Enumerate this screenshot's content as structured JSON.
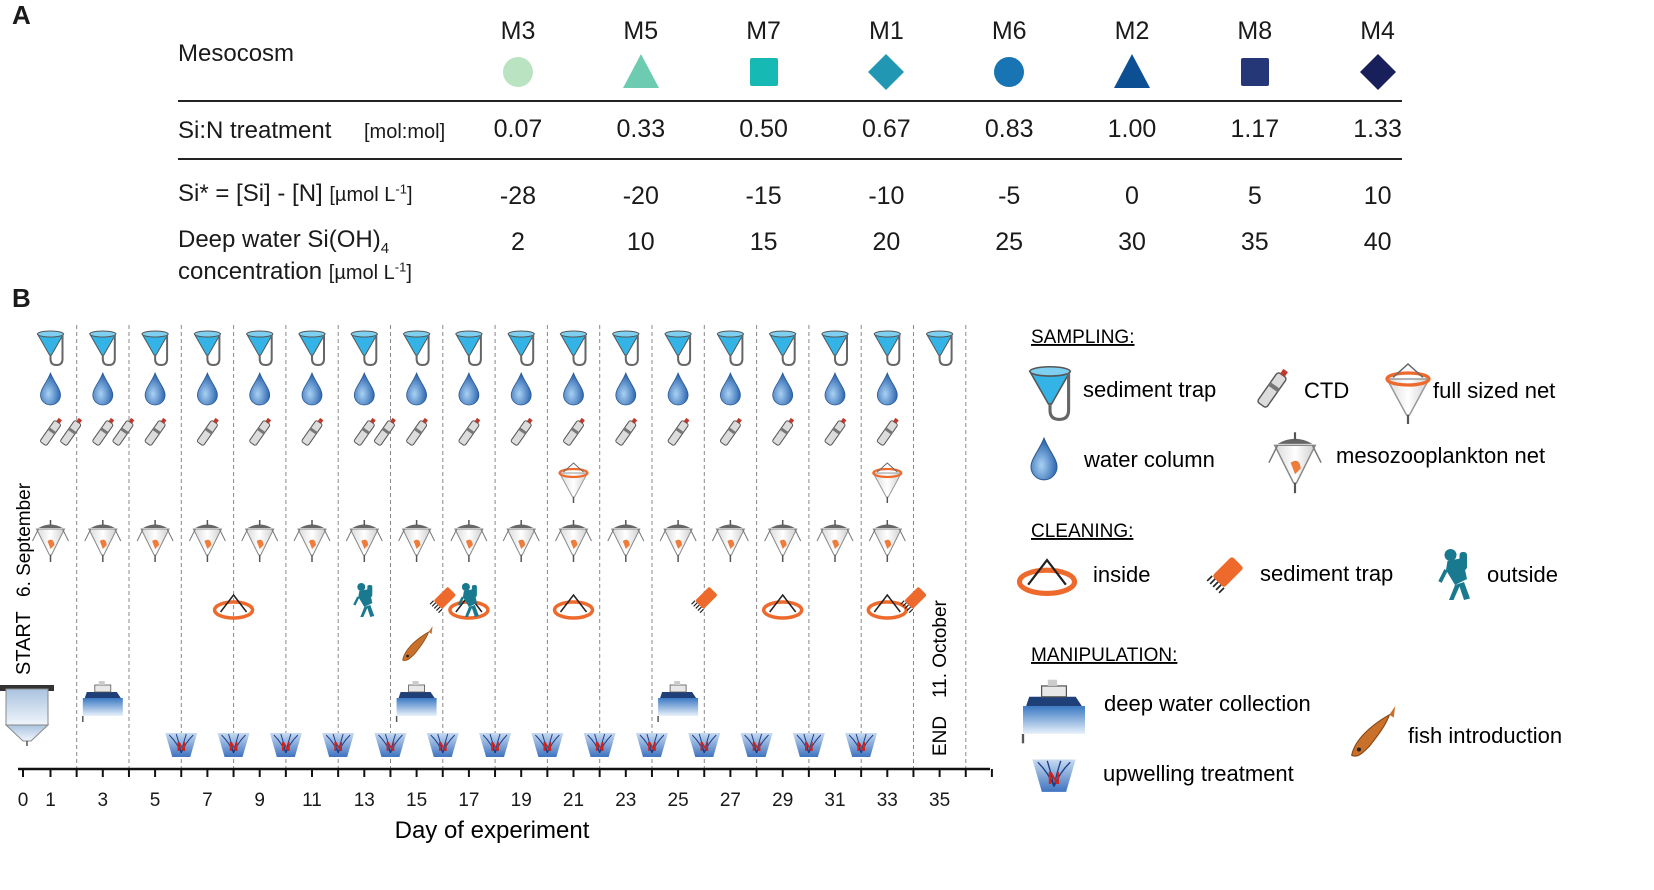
{
  "panel_a": {
    "letter": "A",
    "mesocosm_label": "Mesocosm",
    "mesocosms": [
      {
        "id": "M3",
        "shape": "circle",
        "color": "#b9e3c1",
        "si_n": "0.07",
        "si_star": "-28",
        "deep_si": "2"
      },
      {
        "id": "M5",
        "shape": "triangle",
        "color": "#6ccbb0",
        "si_n": "0.33",
        "si_star": "-20",
        "deep_si": "10"
      },
      {
        "id": "M7",
        "shape": "square",
        "color": "#17b9b4",
        "si_n": "0.50",
        "si_star": "-15",
        "deep_si": "15"
      },
      {
        "id": "M1",
        "shape": "diamond",
        "color": "#2297b4",
        "si_n": "0.67",
        "si_star": "-10",
        "deep_si": "20"
      },
      {
        "id": "M6",
        "shape": "circle",
        "color": "#1874b3",
        "si_n": "0.83",
        "si_star": "-5",
        "deep_si": "25"
      },
      {
        "id": "M2",
        "shape": "triangle",
        "color": "#0d4f93",
        "si_n": "1.00",
        "si_star": "0",
        "deep_si": "30"
      },
      {
        "id": "M8",
        "shape": "square",
        "color": "#253776",
        "si_n": "1.17",
        "si_star": "5",
        "deep_si": "35"
      },
      {
        "id": "M4",
        "shape": "diamond",
        "color": "#191f5b",
        "si_n": "1.33",
        "si_star": "10",
        "deep_si": "40"
      }
    ],
    "si_n_label": "Si:N treatment",
    "si_n_unit": "[mol:mol]",
    "si_star_label": "Si* = [Si] - [N]",
    "si_star_unit_pre": "[µmol L",
    "si_star_unit_sup": "-1",
    "si_star_unit_post": "]",
    "deep_label_1": "Deep water Si(OH)",
    "deep_label_sub": "4",
    "deep_label_2": "concentration",
    "deep_unit_pre": "[µmol L",
    "deep_unit_sup": "-1",
    "deep_unit_post": "]"
  },
  "panel_b": {
    "letter": "B",
    "start_label": "START",
    "start_date": "6. September",
    "end_label": "END",
    "end_date": "11. October",
    "x_axis_title": "Day of experiment",
    "tick_labels": [
      "0",
      "1",
      "3",
      "5",
      "7",
      "9",
      "11",
      "13",
      "15",
      "17",
      "19",
      "21",
      "23",
      "25",
      "27",
      "29",
      "31",
      "33",
      "35"
    ],
    "schedule": {
      "sediment_trap_days": [
        1,
        3,
        5,
        7,
        9,
        11,
        13,
        15,
        17,
        19,
        21,
        23,
        25,
        27,
        29,
        31,
        33,
        35
      ],
      "water_column_days": [
        1,
        3,
        5,
        7,
        9,
        11,
        13,
        15,
        17,
        19,
        21,
        23,
        25,
        27,
        29,
        31,
        33
      ],
      "ctd_days": [
        1,
        2,
        3,
        4,
        5,
        7,
        9,
        11,
        13,
        14,
        15,
        17,
        19,
        21,
        23,
        25,
        27,
        29,
        31,
        33
      ],
      "full_net_days": [
        21,
        33
      ],
      "mesozoo_net_days": [
        1,
        3,
        5,
        7,
        9,
        11,
        13,
        15,
        17,
        19,
        21,
        23,
        25,
        27,
        29,
        31,
        33
      ],
      "clean_inside_days": [
        8,
        17,
        21,
        29,
        33
      ],
      "clean_sediment_trap_days": [
        16,
        26,
        34
      ],
      "clean_outside_days": [
        13,
        17
      ],
      "deep_water_days": [
        3,
        15,
        25
      ],
      "fish_days": [
        15
      ],
      "upwelling_days": [
        6,
        8,
        10,
        12,
        14,
        16,
        18,
        20,
        22,
        24,
        26,
        28,
        30,
        32
      ]
    }
  },
  "legend": {
    "sampling_head": "SAMPLING:",
    "sediment_trap": "sediment trap",
    "ctd": "CTD",
    "full_net": "full sized net",
    "water_column": "water column",
    "mesozoo_net": "mesozooplankton net",
    "cleaning_head": "CLEANING:",
    "inside": "inside",
    "clean_sediment_trap": "sediment trap",
    "outside": "outside",
    "manipulation_head": "MANIPULATION:",
    "deep_water": "deep water collection",
    "fish": "fish introduction",
    "upwelling": "upwelling treatment"
  },
  "colors": {
    "trap_blue": "#34b3e6",
    "drop_blue": "#2f6fb6",
    "orange": "#ee6a2c",
    "diver": "#197a8f",
    "grid": "#888888"
  }
}
